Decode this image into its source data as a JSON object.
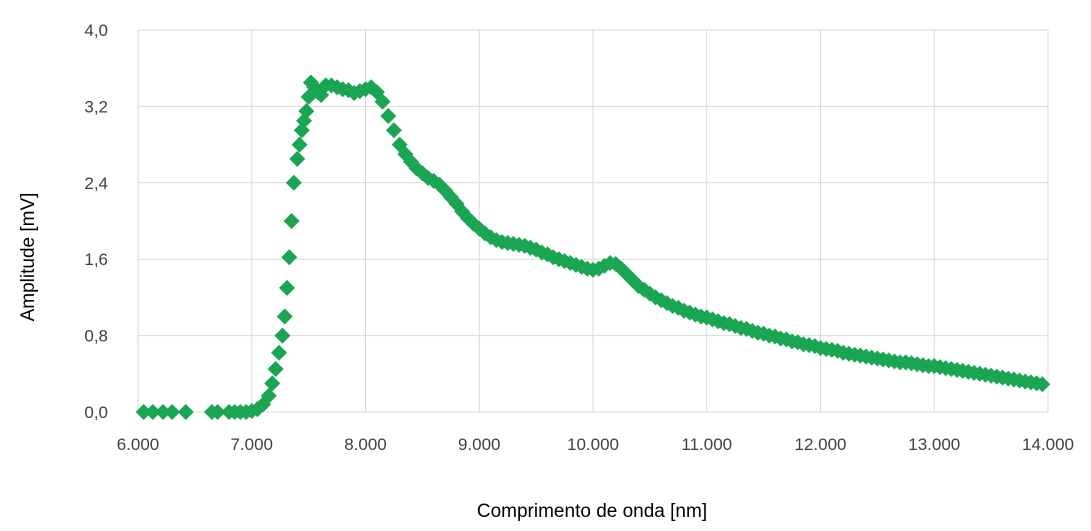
{
  "chart_data": {
    "type": "scatter",
    "title": "",
    "xlabel": "Comprimento de onda [nm]",
    "ylabel": "Amplitude [mV]",
    "xlim": [
      6000,
      14000
    ],
    "ylim": [
      0,
      4
    ],
    "x_ticks": [
      6000,
      7000,
      8000,
      9000,
      10000,
      11000,
      12000,
      13000,
      14000
    ],
    "x_tick_labels": [
      "6.000",
      "7.000",
      "8.000",
      "9.000",
      "10.000",
      "11.000",
      "12.000",
      "13.000",
      "14.000"
    ],
    "y_ticks": [
      0,
      0.8,
      1.6,
      2.4,
      3.2,
      4.0
    ],
    "y_tick_labels": [
      "0,0",
      "0,8",
      "1,6",
      "2,4",
      "3,2",
      "4,0"
    ],
    "grid": true,
    "legend": "none",
    "marker": "diamond",
    "color": "#1aa553",
    "series": [
      {
        "points": [
          [
            6050,
            0
          ],
          [
            6130,
            0
          ],
          [
            6220,
            0
          ],
          [
            6300,
            0
          ],
          [
            6420,
            0
          ],
          [
            6650,
            0
          ],
          [
            6700,
            0
          ],
          [
            6800,
            0
          ],
          [
            6850,
            0
          ],
          [
            6900,
            0
          ],
          [
            6950,
            0
          ],
          [
            7000,
            0.01
          ],
          [
            7050,
            0.03
          ],
          [
            7100,
            0.08
          ],
          [
            7150,
            0.17
          ],
          [
            7180,
            0.3
          ],
          [
            7210,
            0.45
          ],
          [
            7240,
            0.62
          ],
          [
            7270,
            0.8
          ],
          [
            7290,
            1.0
          ],
          [
            7310,
            1.3
          ],
          [
            7330,
            1.62
          ],
          [
            7350,
            2.0
          ],
          [
            7370,
            2.4
          ],
          [
            7400,
            2.65
          ],
          [
            7420,
            2.8
          ],
          [
            7440,
            2.95
          ],
          [
            7460,
            3.05
          ],
          [
            7480,
            3.15
          ],
          [
            7500,
            3.3
          ],
          [
            7520,
            3.45
          ],
          [
            7550,
            3.4
          ],
          [
            7580,
            3.35
          ],
          [
            7610,
            3.32
          ],
          [
            7650,
            3.42
          ],
          [
            7700,
            3.42
          ],
          [
            7750,
            3.4
          ],
          [
            7800,
            3.38
          ],
          [
            7850,
            3.37
          ],
          [
            7900,
            3.34
          ],
          [
            7950,
            3.36
          ],
          [
            8000,
            3.38
          ],
          [
            8050,
            3.4
          ],
          [
            8100,
            3.35
          ],
          [
            8150,
            3.25
          ],
          [
            8200,
            3.1
          ],
          [
            8250,
            2.95
          ],
          [
            8300,
            2.8
          ],
          [
            8350,
            2.7
          ],
          [
            8400,
            2.62
          ],
          [
            8450,
            2.55
          ],
          [
            8500,
            2.5
          ],
          [
            8550,
            2.45
          ],
          [
            8600,
            2.42
          ],
          [
            8650,
            2.38
          ],
          [
            8700,
            2.32
          ],
          [
            8750,
            2.25
          ],
          [
            8800,
            2.18
          ],
          [
            8850,
            2.1
          ],
          [
            8900,
            2.03
          ],
          [
            8950,
            1.97
          ],
          [
            9000,
            1.92
          ],
          [
            9050,
            1.87
          ],
          [
            9100,
            1.83
          ],
          [
            9150,
            1.8
          ],
          [
            9200,
            1.78
          ],
          [
            9250,
            1.77
          ],
          [
            9300,
            1.76
          ],
          [
            9350,
            1.75
          ],
          [
            9400,
            1.74
          ],
          [
            9450,
            1.72
          ],
          [
            9500,
            1.7
          ],
          [
            9550,
            1.67
          ],
          [
            9600,
            1.65
          ],
          [
            9650,
            1.62
          ],
          [
            9700,
            1.6
          ],
          [
            9750,
            1.58
          ],
          [
            9800,
            1.56
          ],
          [
            9850,
            1.54
          ],
          [
            9900,
            1.52
          ],
          [
            9950,
            1.5
          ],
          [
            10000,
            1.49
          ],
          [
            10050,
            1.5
          ],
          [
            10100,
            1.53
          ],
          [
            10150,
            1.56
          ],
          [
            10200,
            1.55
          ],
          [
            10250,
            1.5
          ],
          [
            10300,
            1.44
          ],
          [
            10350,
            1.38
          ],
          [
            10400,
            1.32
          ],
          [
            10450,
            1.28
          ],
          [
            10500,
            1.24
          ],
          [
            10550,
            1.2
          ],
          [
            10600,
            1.17
          ],
          [
            10650,
            1.14
          ],
          [
            10700,
            1.11
          ],
          [
            10750,
            1.09
          ],
          [
            10800,
            1.06
          ],
          [
            10850,
            1.04
          ],
          [
            10900,
            1.02
          ],
          [
            10950,
            1.0
          ],
          [
            11000,
            0.99
          ],
          [
            11050,
            0.97
          ],
          [
            11100,
            0.95
          ],
          [
            11150,
            0.93
          ],
          [
            11200,
            0.92
          ],
          [
            11250,
            0.9
          ],
          [
            11300,
            0.88
          ],
          [
            11350,
            0.87
          ],
          [
            11400,
            0.85
          ],
          [
            11450,
            0.83
          ],
          [
            11500,
            0.82
          ],
          [
            11550,
            0.8
          ],
          [
            11600,
            0.79
          ],
          [
            11650,
            0.77
          ],
          [
            11700,
            0.76
          ],
          [
            11750,
            0.74
          ],
          [
            11800,
            0.73
          ],
          [
            11850,
            0.71
          ],
          [
            11900,
            0.7
          ],
          [
            11950,
            0.69
          ],
          [
            12000,
            0.67
          ],
          [
            12050,
            0.66
          ],
          [
            12100,
            0.65
          ],
          [
            12150,
            0.64
          ],
          [
            12200,
            0.62
          ],
          [
            12250,
            0.61
          ],
          [
            12300,
            0.6
          ],
          [
            12350,
            0.59
          ],
          [
            12400,
            0.58
          ],
          [
            12450,
            0.57
          ],
          [
            12500,
            0.56
          ],
          [
            12550,
            0.55
          ],
          [
            12600,
            0.54
          ],
          [
            12650,
            0.53
          ],
          [
            12700,
            0.52
          ],
          [
            12750,
            0.52
          ],
          [
            12800,
            0.51
          ],
          [
            12850,
            0.5
          ],
          [
            12900,
            0.49
          ],
          [
            12950,
            0.48
          ],
          [
            13000,
            0.48
          ],
          [
            13050,
            0.47
          ],
          [
            13100,
            0.46
          ],
          [
            13150,
            0.45
          ],
          [
            13200,
            0.44
          ],
          [
            13250,
            0.43
          ],
          [
            13300,
            0.42
          ],
          [
            13350,
            0.41
          ],
          [
            13400,
            0.4
          ],
          [
            13450,
            0.39
          ],
          [
            13500,
            0.38
          ],
          [
            13550,
            0.37
          ],
          [
            13600,
            0.36
          ],
          [
            13650,
            0.35
          ],
          [
            13700,
            0.34
          ],
          [
            13750,
            0.33
          ],
          [
            13800,
            0.32
          ],
          [
            13850,
            0.31
          ],
          [
            13900,
            0.3
          ],
          [
            13950,
            0.29
          ]
        ]
      }
    ]
  }
}
